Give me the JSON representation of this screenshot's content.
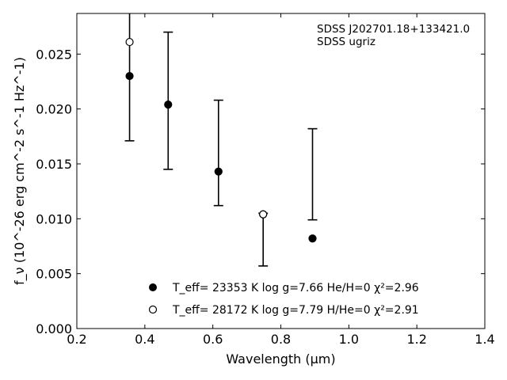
{
  "chart_data": {
    "type": "scatter",
    "xlabel": "Wavelength (μm)",
    "ylabel": "f_ν (10^-26 erg cm^-2 s^-1 Hz^-1)",
    "xlim": [
      0.2,
      1.4
    ],
    "ylim": [
      0.0,
      0.0287
    ],
    "xticks": [
      0.2,
      0.4,
      0.6,
      0.8,
      1.0,
      1.2,
      1.4
    ],
    "xtick_labels": [
      "0.2",
      "0.4",
      "0.6",
      "0.8",
      "1.0",
      "1.2",
      "1.4"
    ],
    "yticks": [
      0.0,
      0.005,
      0.01,
      0.015,
      0.02,
      0.025
    ],
    "ytick_labels": [
      "0.000",
      "0.005",
      "0.010",
      "0.015",
      "0.020",
      "0.025"
    ],
    "annotations": [
      "SDSS J202701.18+133421.0",
      "SDSS ugriz"
    ],
    "observed": {
      "x": [
        0.3551,
        0.4686,
        0.6166,
        0.748,
        0.8932
      ],
      "y_lower": [
        0.0171,
        0.0145,
        0.0112,
        0.0057,
        0.0099
      ],
      "y_upper": [
        0.0287,
        0.027,
        0.0208,
        0.0105,
        0.0182
      ]
    },
    "series": [
      {
        "name": "T_eff= 23353 K  log g=7.66  He/H=0  χ²=2.96",
        "marker": "filled-circle",
        "x": [
          0.3551,
          0.4686,
          0.6166,
          0.748,
          0.8932
        ],
        "y": [
          0.023,
          0.0204,
          0.0143,
          0.0104,
          0.0082
        ]
      },
      {
        "name": "T_eff= 28172 K  log g=7.79  H/He=0  χ²=2.91",
        "marker": "open-circle",
        "x": [
          0.3551,
          0.748
        ],
        "y": [
          0.0261,
          0.0104
        ]
      }
    ],
    "grid": false,
    "legend_position": "lower-center"
  }
}
